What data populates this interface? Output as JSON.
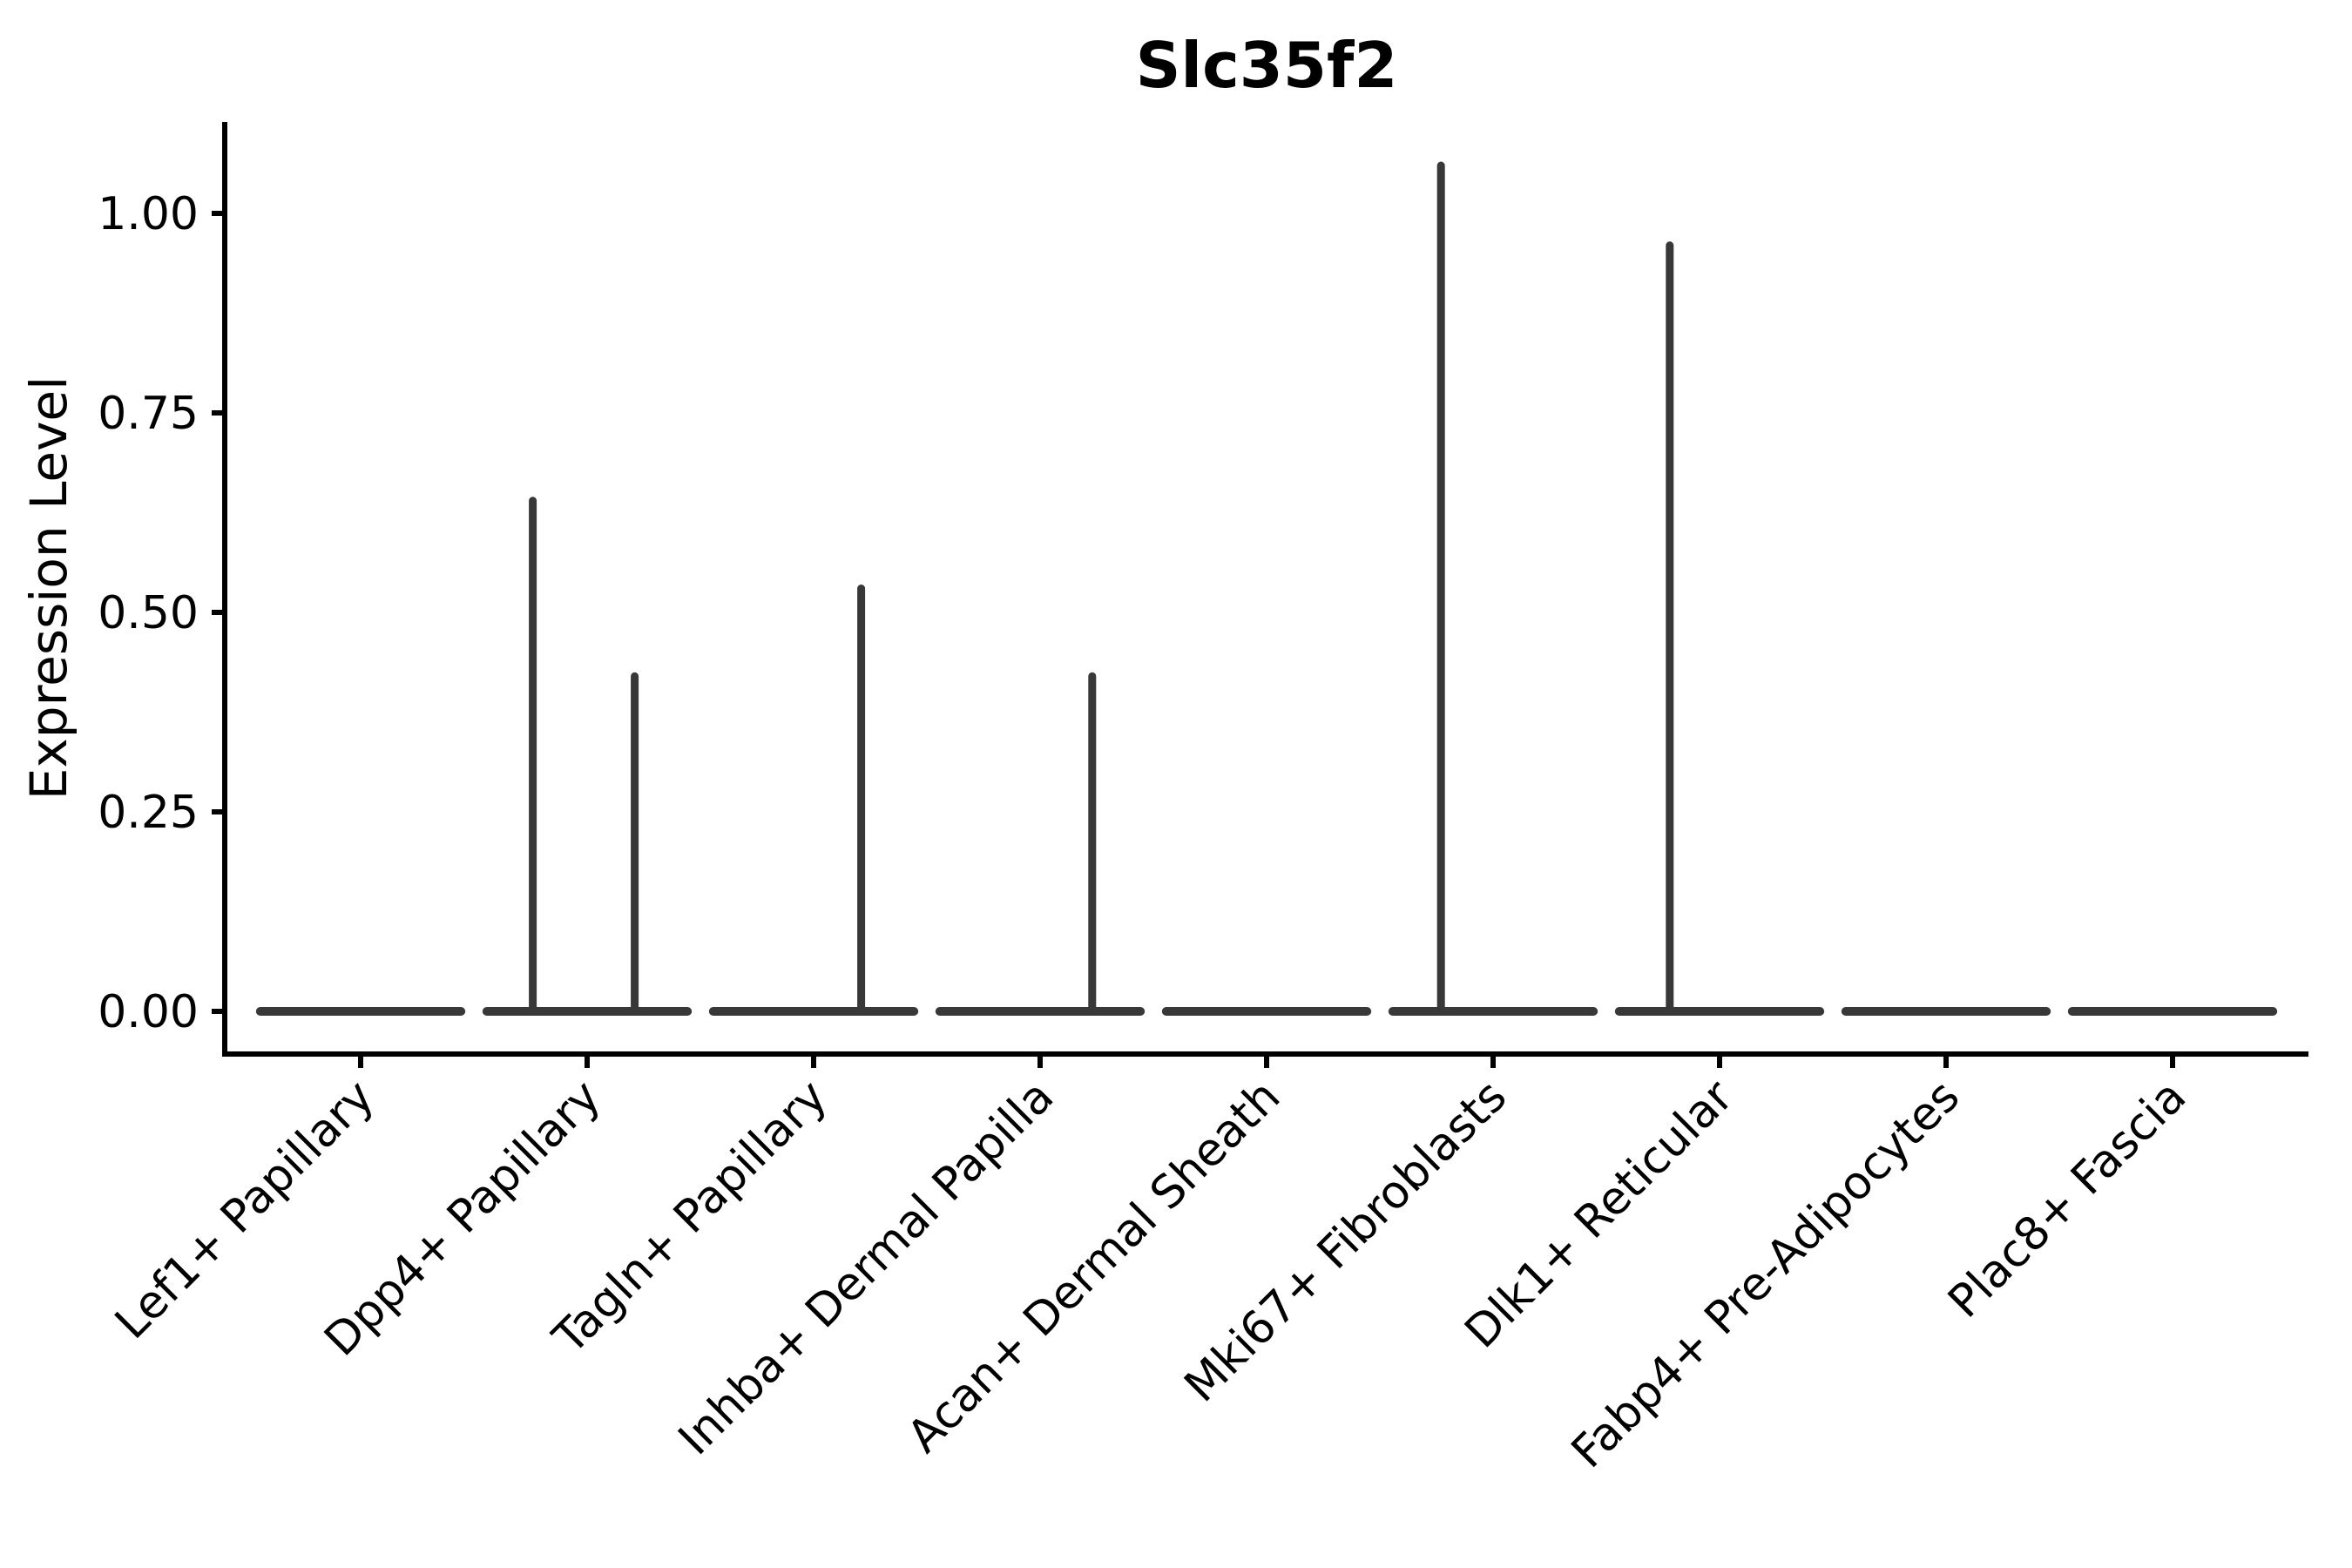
{
  "chart_data": {
    "type": "violin",
    "title": "Slc35f2",
    "ylabel": "Expression Level",
    "xlabel": "",
    "grid": false,
    "legend": "none",
    "background_color": "#ffffff",
    "axis_color": "#000000",
    "violin_color": "#383838",
    "ylim": [
      -0.05,
      1.12
    ],
    "yticks": [
      0.0,
      0.25,
      0.5,
      0.75,
      1.0
    ],
    "ytick_labels": [
      "0.00",
      "0.25",
      "0.50",
      "0.75",
      "1.00"
    ],
    "categories": [
      "Lef1+ Papillary",
      "Dpp4+ Papillary",
      "Tagln+ Papillary",
      "Inhba+ Dermal Papilla",
      "Acan+ Dermal Sheath",
      "Mki67+ Fibroblasts",
      "Dlk1+ Reticular",
      "Fabp4+ Pre-Adipocytes",
      "Plac8+ Fascia"
    ],
    "violins": [
      {
        "category": "Lef1+ Papillary",
        "baseline": 0,
        "spikes": []
      },
      {
        "category": "Dpp4+ Papillary",
        "baseline": 0,
        "spikes": [
          {
            "offset_frac": -0.24,
            "max": 0.64
          },
          {
            "offset_frac": 0.21,
            "max": 0.42
          }
        ]
      },
      {
        "category": "Tagln+ Papillary",
        "baseline": 0,
        "spikes": [
          {
            "offset_frac": 0.21,
            "max": 0.53
          }
        ]
      },
      {
        "category": "Inhba+ Dermal Papilla",
        "baseline": 0,
        "spikes": [
          {
            "offset_frac": 0.23,
            "max": 0.42
          }
        ]
      },
      {
        "category": "Acan+ Dermal Sheath",
        "baseline": 0,
        "spikes": []
      },
      {
        "category": "Mki67+ Fibroblasts",
        "baseline": 0,
        "spikes": [
          {
            "offset_frac": -0.23,
            "max": 1.06
          }
        ]
      },
      {
        "category": "Dlk1+ Reticular",
        "baseline": 0,
        "spikes": [
          {
            "offset_frac": -0.22,
            "max": 0.96
          }
        ]
      },
      {
        "category": "Fabp4+ Pre-Adipocytes",
        "baseline": 0,
        "spikes": []
      },
      {
        "category": "Plac8+ Fascia",
        "baseline": 0,
        "spikes": []
      }
    ]
  }
}
